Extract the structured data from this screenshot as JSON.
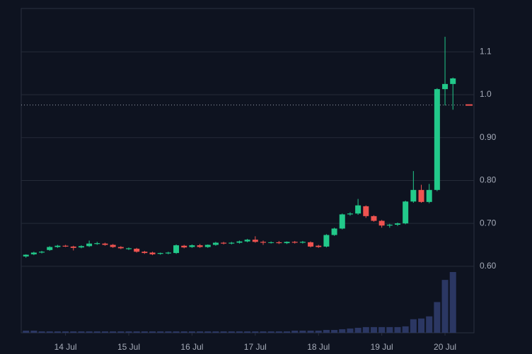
{
  "chart_data": {
    "type": "candlestick",
    "x": [
      13.375,
      13.5,
      13.625,
      13.75,
      13.875,
      14.0,
      14.125,
      14.25,
      14.375,
      14.5,
      14.625,
      14.75,
      14.875,
      15.0,
      15.125,
      15.25,
      15.375,
      15.5,
      15.625,
      15.75,
      15.875,
      16.0,
      16.125,
      16.25,
      16.375,
      16.5,
      16.625,
      16.75,
      16.875,
      17.0,
      17.125,
      17.25,
      17.375,
      17.5,
      17.625,
      17.75,
      17.875,
      18.0,
      18.125,
      18.25,
      18.375,
      18.5,
      18.625,
      18.75,
      18.875,
      19.0,
      19.125,
      19.25,
      19.375,
      19.5,
      19.625,
      19.75,
      19.875,
      20.0,
      20.125
    ],
    "open": [
      0.623,
      0.628,
      0.632,
      0.638,
      0.645,
      0.648,
      0.646,
      0.644,
      0.647,
      0.652,
      0.653,
      0.65,
      0.645,
      0.64,
      0.641,
      0.634,
      0.632,
      0.629,
      0.63,
      0.631,
      0.648,
      0.645,
      0.649,
      0.645,
      0.65,
      0.655,
      0.653,
      0.655,
      0.658,
      0.662,
      0.657,
      0.655,
      0.656,
      0.654,
      0.657,
      0.655,
      0.656,
      0.648,
      0.646,
      0.673,
      0.688,
      0.721,
      0.723,
      0.74,
      0.717,
      0.706,
      0.695,
      0.697,
      0.7,
      0.751,
      0.778,
      0.75,
      0.778,
      1.013,
      1.025
    ],
    "high": [
      0.628,
      0.634,
      0.636,
      0.647,
      0.65,
      0.65,
      0.648,
      0.649,
      0.66,
      0.657,
      0.655,
      0.652,
      0.647,
      0.644,
      0.643,
      0.636,
      0.634,
      0.632,
      0.634,
      0.651,
      0.65,
      0.651,
      0.652,
      0.651,
      0.657,
      0.657,
      0.657,
      0.66,
      0.664,
      0.67,
      0.66,
      0.658,
      0.659,
      0.658,
      0.659,
      0.659,
      0.658,
      0.65,
      0.675,
      0.69,
      0.723,
      0.726,
      0.757,
      0.742,
      0.719,
      0.708,
      0.699,
      0.702,
      0.753,
      0.822,
      0.79,
      0.792,
      1.015,
      1.135,
      1.04
    ],
    "low": [
      0.62,
      0.626,
      0.63,
      0.636,
      0.643,
      0.645,
      0.637,
      0.642,
      0.645,
      0.65,
      0.648,
      0.643,
      0.64,
      0.638,
      0.632,
      0.629,
      0.626,
      0.627,
      0.628,
      0.629,
      0.642,
      0.643,
      0.643,
      0.643,
      0.648,
      0.651,
      0.651,
      0.653,
      0.656,
      0.655,
      0.65,
      0.653,
      0.652,
      0.652,
      0.653,
      0.653,
      0.644,
      0.643,
      0.644,
      0.671,
      0.686,
      0.718,
      0.72,
      0.713,
      0.704,
      0.69,
      0.69,
      0.694,
      0.698,
      0.748,
      0.748,
      0.747,
      0.775,
      0.975,
      0.965
    ],
    "close": [
      0.627,
      0.632,
      0.634,
      0.645,
      0.648,
      0.646,
      0.643,
      0.647,
      0.653,
      0.654,
      0.65,
      0.645,
      0.642,
      0.642,
      0.634,
      0.631,
      0.628,
      0.631,
      0.632,
      0.649,
      0.644,
      0.649,
      0.645,
      0.65,
      0.655,
      0.653,
      0.655,
      0.658,
      0.662,
      0.657,
      0.655,
      0.656,
      0.654,
      0.657,
      0.655,
      0.657,
      0.646,
      0.645,
      0.673,
      0.688,
      0.721,
      0.723,
      0.742,
      0.717,
      0.706,
      0.695,
      0.697,
      0.7,
      0.751,
      0.778,
      0.75,
      0.778,
      1.013,
      1.025,
      1.038
    ],
    "volume": [
      3,
      3,
      2,
      2,
      2,
      2,
      2,
      2,
      2,
      2,
      2,
      2,
      2,
      2,
      2,
      2,
      2,
      2,
      2,
      2,
      2,
      2,
      2,
      2,
      2,
      2,
      2,
      2,
      2,
      2,
      2,
      2,
      2,
      2,
      3,
      3,
      3,
      3,
      4,
      4,
      5,
      6,
      7,
      8,
      8,
      8,
      8,
      8,
      9,
      19,
      20,
      23,
      43,
      74,
      85
    ],
    "up_color": "#22c98a",
    "down_color": "#ef5350",
    "volume_color": "#2b3763",
    "price_line": 0.976,
    "ylim": [
      0.445,
      1.201
    ],
    "yticks": [
      {
        "value": 0.6,
        "label": "0.60"
      },
      {
        "value": 0.7,
        "label": "0.70"
      },
      {
        "value": 0.8,
        "label": "0.80"
      },
      {
        "value": 0.9,
        "label": "0.90"
      },
      {
        "value": 1.0,
        "label": "1.0"
      },
      {
        "value": 1.1,
        "label": "1.1"
      }
    ],
    "xlim": [
      13.3,
      20.458
    ],
    "xticks": [
      {
        "value": 14,
        "label": "14 Jul"
      },
      {
        "value": 15,
        "label": "15 Jul"
      },
      {
        "value": 16,
        "label": "16 Jul"
      },
      {
        "value": 17,
        "label": "17 Jul"
      },
      {
        "value": 18,
        "label": "18 Jul"
      },
      {
        "value": 19,
        "label": "19 Jul"
      },
      {
        "value": 20,
        "label": "20 Jul"
      }
    ],
    "grid": true
  }
}
